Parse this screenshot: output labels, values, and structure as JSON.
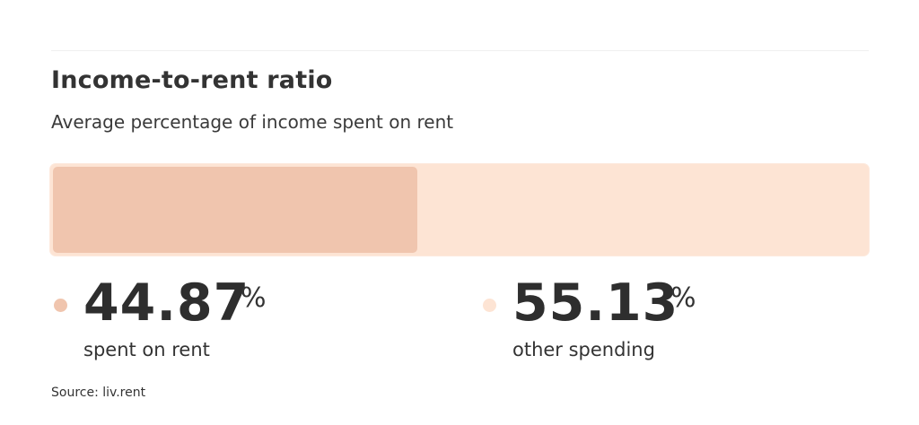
{
  "header": {
    "title": "Income-to-rent ratio",
    "subtitle": "Average percentage of income spent on rent"
  },
  "stats": [
    {
      "value": "44.87",
      "unit": "%",
      "label": "spent on rent",
      "color": "#f0c5ae"
    },
    {
      "value": "55.13",
      "unit": "%",
      "label": "other spending",
      "color": "#fde4d4"
    }
  ],
  "footer": {
    "source": "Source: liv.rent"
  },
  "colors": {
    "rent": "#f0c5ae",
    "other": "#fde4d4",
    "text": "#2f2f2f"
  },
  "chart_data": {
    "type": "bar",
    "orientation": "horizontal-stacked",
    "title": "Income-to-rent ratio",
    "subtitle": "Average percentage of income spent on rent",
    "categories": [
      "spent on rent",
      "other spending"
    ],
    "values": [
      44.87,
      55.13
    ],
    "unit": "%",
    "xlim": [
      0,
      100
    ],
    "grid": false,
    "legend": "below bar, with colored dots",
    "source": "liv.rent"
  }
}
